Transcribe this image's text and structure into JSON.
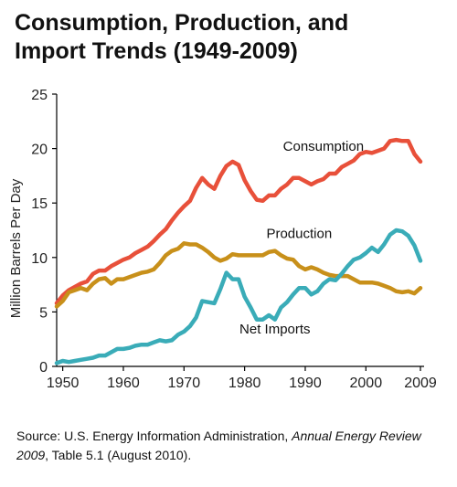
{
  "title_line1": "Consumption, Production, and",
  "title_line2": "Import Trends (1949-2009)",
  "source": {
    "prefix": "Source: U.S. Energy Information Administration, ",
    "publication": "Annual Energy Review 2009",
    "suffix": ", Table 5.1 (August 2010)."
  },
  "chart_data": {
    "type": "line",
    "title": "Consumption, Production, and Import Trends (1949-2009)",
    "ylabel": "Million Barrels Per Day",
    "xlabel": "",
    "xlim": [
      1949,
      2009
    ],
    "ylim": [
      0,
      25
    ],
    "xticks": [
      1950,
      1960,
      1970,
      1980,
      1990,
      2000,
      2009
    ],
    "yticks": [
      0,
      5,
      10,
      15,
      20,
      25
    ],
    "grid": false,
    "legend": "inline labels",
    "x": [
      1949,
      1950,
      1951,
      1952,
      1953,
      1954,
      1955,
      1956,
      1957,
      1958,
      1959,
      1960,
      1961,
      1962,
      1963,
      1964,
      1965,
      1966,
      1967,
      1968,
      1969,
      1970,
      1971,
      1972,
      1973,
      1974,
      1975,
      1976,
      1977,
      1978,
      1979,
      1980,
      1981,
      1982,
      1983,
      1984,
      1985,
      1986,
      1987,
      1988,
      1989,
      1990,
      1991,
      1992,
      1993,
      1994,
      1995,
      1996,
      1997,
      1998,
      1999,
      2000,
      2001,
      2002,
      2003,
      2004,
      2005,
      2006,
      2007,
      2008,
      2009
    ],
    "series": [
      {
        "name": "Consumption",
        "color": "#e8503a",
        "values": [
          5.8,
          6.5,
          7.0,
          7.3,
          7.6,
          7.8,
          8.5,
          8.8,
          8.8,
          9.2,
          9.5,
          9.8,
          10.0,
          10.4,
          10.7,
          11.0,
          11.5,
          12.1,
          12.6,
          13.4,
          14.1,
          14.7,
          15.2,
          16.4,
          17.3,
          16.7,
          16.3,
          17.5,
          18.4,
          18.8,
          18.5,
          17.1,
          16.1,
          15.3,
          15.2,
          15.7,
          15.7,
          16.3,
          16.7,
          17.3,
          17.3,
          17.0,
          16.7,
          17.0,
          17.2,
          17.7,
          17.7,
          18.3,
          18.6,
          18.9,
          19.5,
          19.7,
          19.6,
          19.8,
          20.0,
          20.7,
          20.8,
          20.7,
          20.7,
          19.5,
          18.8
        ]
      },
      {
        "name": "Production",
        "color": "#c8901a",
        "values": [
          5.5,
          6.0,
          6.8,
          7.0,
          7.2,
          7.0,
          7.6,
          8.0,
          8.1,
          7.6,
          8.0,
          8.0,
          8.2,
          8.4,
          8.6,
          8.7,
          8.9,
          9.5,
          10.2,
          10.6,
          10.8,
          11.3,
          11.2,
          11.2,
          10.9,
          10.5,
          10.0,
          9.7,
          9.9,
          10.3,
          10.2,
          10.2,
          10.2,
          10.2,
          10.2,
          10.5,
          10.6,
          10.2,
          9.9,
          9.8,
          9.2,
          8.9,
          9.1,
          8.9,
          8.6,
          8.4,
          8.3,
          8.3,
          8.3,
          8.0,
          7.7,
          7.7,
          7.7,
          7.6,
          7.4,
          7.2,
          6.9,
          6.8,
          6.9,
          6.7,
          7.2
        ]
      },
      {
        "name": "Net Imports",
        "color": "#3aacb8",
        "values": [
          0.3,
          0.5,
          0.4,
          0.5,
          0.6,
          0.7,
          0.8,
          1.0,
          1.0,
          1.3,
          1.6,
          1.6,
          1.7,
          1.9,
          2.0,
          2.0,
          2.2,
          2.4,
          2.3,
          2.4,
          2.9,
          3.2,
          3.7,
          4.5,
          6.0,
          5.9,
          5.8,
          7.1,
          8.6,
          8.0,
          8.0,
          6.4,
          5.4,
          4.3,
          4.3,
          4.7,
          4.3,
          5.4,
          5.9,
          6.6,
          7.2,
          7.2,
          6.6,
          6.9,
          7.6,
          8.0,
          7.9,
          8.5,
          9.2,
          9.8,
          10.0,
          10.4,
          10.9,
          10.5,
          11.2,
          12.1,
          12.5,
          12.4,
          12.0,
          11.1,
          9.7
        ]
      }
    ],
    "annotations": [
      {
        "text": "Consumption",
        "x": 1993,
        "y": 19.8
      },
      {
        "text": "Production",
        "x": 1989,
        "y": 11.8
      },
      {
        "text": "Net Imports",
        "x": 1985,
        "y": 3.0
      }
    ]
  }
}
